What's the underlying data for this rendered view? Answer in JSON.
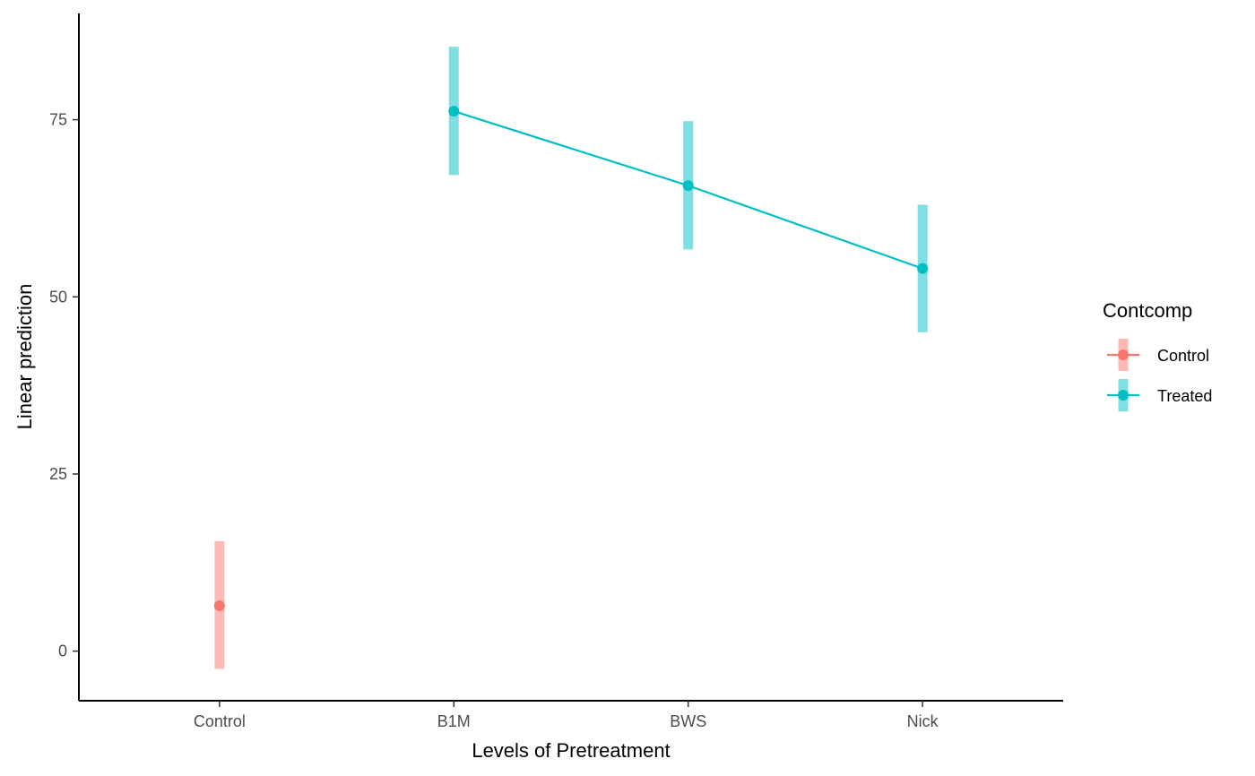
{
  "chart_data": {
    "type": "line",
    "xlabel": "Levels of Pretreatment",
    "ylabel": "Linear prediction",
    "categories": [
      "Control",
      "B1M",
      "BWS",
      "Nick"
    ],
    "ylim": [
      -7,
      90
    ],
    "yticks": [
      0,
      25,
      50,
      75
    ],
    "grid": false,
    "legend": {
      "title": "Contcomp",
      "position": "right",
      "entries": [
        "Control",
        "Treated"
      ]
    },
    "series": [
      {
        "name": "Control",
        "color": "#F8766D",
        "ci_color": "#FCBAB6",
        "points": [
          {
            "category": "Control",
            "value": 6.4,
            "lower": -2.5,
            "upper": 15.5
          }
        ]
      },
      {
        "name": "Treated",
        "color": "#00BFC4",
        "ci_color": "#80DFE2",
        "points": [
          {
            "category": "B1M",
            "value": 76.2,
            "lower": 67.2,
            "upper": 85.3
          },
          {
            "category": "BWS",
            "value": 65.7,
            "lower": 56.7,
            "upper": 74.8
          },
          {
            "category": "Nick",
            "value": 54.0,
            "lower": 45.0,
            "upper": 63.0
          }
        ]
      }
    ]
  }
}
